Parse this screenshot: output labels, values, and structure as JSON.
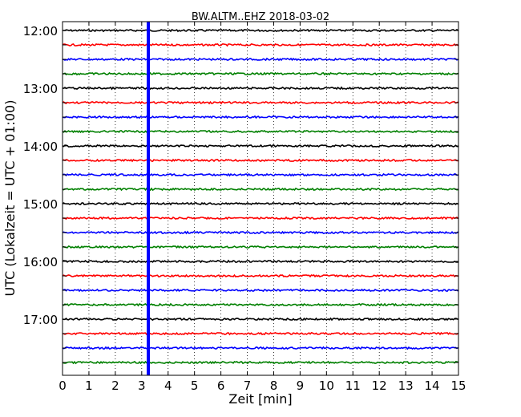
{
  "chart_data": {
    "type": "line",
    "title": "BW.ALTM..EHZ 2018-03-02",
    "xlabel": "Zeit  [min]",
    "ylabel": "UTC (Lokalzeit = UTC + 01:00)",
    "xlim": [
      0,
      15
    ],
    "x_ticks": [
      0,
      1,
      2,
      3,
      4,
      5,
      6,
      7,
      8,
      9,
      10,
      11,
      12,
      13,
      14,
      15
    ],
    "x_tick_labels": [
      "0",
      "1",
      "2",
      "3",
      "4",
      "5",
      "6",
      "7",
      "8",
      "9",
      "10",
      "11",
      "12",
      "13",
      "14",
      "15"
    ],
    "y_tick_labels": [
      "12:00",
      "13:00",
      "14:00",
      "15:00",
      "16:00",
      "17:00"
    ],
    "grid": "x-dotted",
    "trace_colors": [
      "#000000",
      "#ff0000",
      "#0000ff",
      "#008000"
    ],
    "traces": [
      {
        "start": "12:00"
      },
      {
        "start": "12:15"
      },
      {
        "start": "12:30"
      },
      {
        "start": "12:45"
      },
      {
        "start": "13:00"
      },
      {
        "start": "13:15"
      },
      {
        "start": "13:30"
      },
      {
        "start": "13:45"
      },
      {
        "start": "14:00"
      },
      {
        "start": "14:15"
      },
      {
        "start": "14:30"
      },
      {
        "start": "14:45"
      },
      {
        "start": "15:00"
      },
      {
        "start": "15:15"
      },
      {
        "start": "15:30"
      },
      {
        "start": "15:45"
      },
      {
        "start": "16:00"
      },
      {
        "start": "16:15"
      },
      {
        "start": "16:30"
      },
      {
        "start": "16:45"
      },
      {
        "start": "17:00"
      },
      {
        "start": "17:15"
      },
      {
        "start": "17:30"
      },
      {
        "start": "17:45"
      }
    ],
    "event_marker": {
      "x": 3.25,
      "color": "#0000ff"
    }
  }
}
